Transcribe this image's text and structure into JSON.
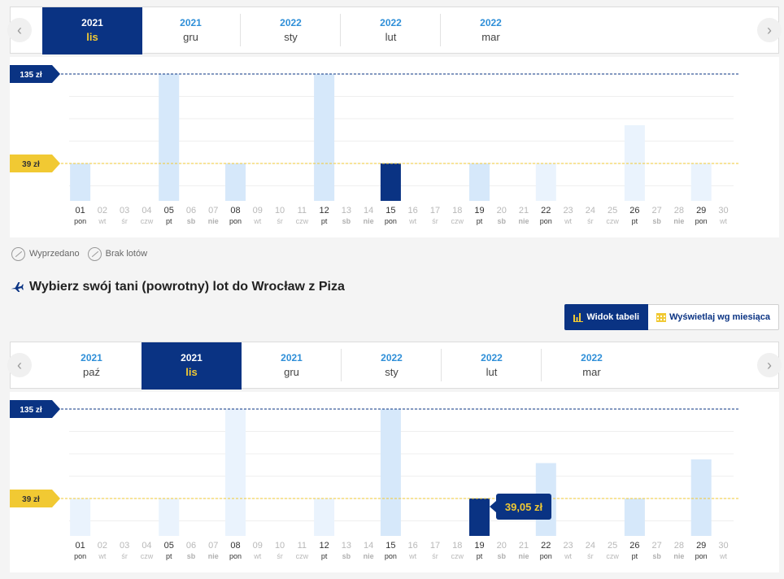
{
  "top": {
    "months": [
      {
        "year": "2021",
        "month": "lis",
        "active": true
      },
      {
        "year": "2021",
        "month": "gru",
        "active": false
      },
      {
        "year": "2022",
        "month": "sty",
        "active": false
      },
      {
        "year": "2022",
        "month": "lut",
        "active": false
      },
      {
        "year": "2022",
        "month": "mar",
        "active": false
      }
    ],
    "nav_prev": "‹",
    "nav_next": "›"
  },
  "legend": {
    "sold_out": "Wyprzedano",
    "no_flights": "Brak lotów"
  },
  "section_title": "Wybierz swój tani (powrotny) lot do Wrocław z Piza",
  "view_toggle": {
    "table_view": "Widok tabeli",
    "month_view": "Wyświetlaj wg miesiąca"
  },
  "bottom": {
    "months": [
      {
        "year": "2021",
        "month": "paź",
        "active": false
      },
      {
        "year": "2021",
        "month": "lis",
        "active": true
      },
      {
        "year": "2021",
        "month": "gru",
        "active": false
      },
      {
        "year": "2022",
        "month": "sty",
        "active": false
      },
      {
        "year": "2022",
        "month": "lut",
        "active": false
      },
      {
        "year": "2022",
        "month": "mar",
        "active": false
      }
    ],
    "nav_prev": "‹",
    "nav_next": "›"
  },
  "colors": {
    "navy": "#0a3383",
    "yellow": "#f1c933",
    "bar_light": "#d6e8fa",
    "bar_lighter": "#eaf3fd",
    "link_blue": "#2f8fd8",
    "weekend_grey": "#b0b0b0"
  },
  "chart_data": [
    {
      "type": "bar",
      "max_label": "135 zł",
      "min_label": "39 zł",
      "max_value": 135,
      "min_value": 39,
      "categories": [
        "01",
        "02",
        "03",
        "04",
        "05",
        "06",
        "07",
        "08",
        "09",
        "10",
        "11",
        "12",
        "13",
        "14",
        "15",
        "16",
        "17",
        "18",
        "19",
        "20",
        "21",
        "22",
        "23",
        "24",
        "25",
        "26",
        "27",
        "28",
        "29",
        "30"
      ],
      "weekdays": [
        "pon",
        "wt",
        "śr",
        "czw",
        "pt",
        "sb",
        "nie",
        "pon",
        "wt",
        "śr",
        "czw",
        "pt",
        "sb",
        "nie",
        "pon",
        "wt",
        "śr",
        "czw",
        "pt",
        "sb",
        "nie",
        "pon",
        "wt",
        "śr",
        "czw",
        "pt",
        "sb",
        "nie",
        "pon",
        "wt"
      ],
      "values": [
        39,
        null,
        null,
        null,
        135,
        null,
        null,
        39,
        null,
        null,
        null,
        135,
        null,
        null,
        39,
        null,
        null,
        null,
        39,
        null,
        null,
        39,
        null,
        null,
        null,
        80,
        null,
        null,
        39,
        null
      ],
      "shades": [
        "light",
        "",
        "",
        "",
        "light",
        "",
        "",
        "light",
        "",
        "",
        "",
        "light",
        "",
        "",
        "selected",
        "",
        "",
        "",
        "light",
        "",
        "",
        "lighter",
        "",
        "",
        "",
        "lighter",
        "",
        "",
        "lighter",
        ""
      ],
      "selected_day": "15",
      "tooltip": ""
    },
    {
      "type": "bar",
      "max_label": "135 zł",
      "min_label": "39 zł",
      "max_value": 135,
      "min_value": 39,
      "categories": [
        "01",
        "02",
        "03",
        "04",
        "05",
        "06",
        "07",
        "08",
        "09",
        "10",
        "11",
        "12",
        "13",
        "14",
        "15",
        "16",
        "17",
        "18",
        "19",
        "20",
        "21",
        "22",
        "23",
        "24",
        "25",
        "26",
        "27",
        "28",
        "29",
        "30"
      ],
      "weekdays": [
        "pon",
        "wt",
        "śr",
        "czw",
        "pt",
        "sb",
        "nie",
        "pon",
        "wt",
        "śr",
        "czw",
        "pt",
        "sb",
        "nie",
        "pon",
        "wt",
        "śr",
        "czw",
        "pt",
        "sb",
        "nie",
        "pon",
        "wt",
        "śr",
        "czw",
        "pt",
        "sb",
        "nie",
        "pon",
        "wt"
      ],
      "values": [
        39,
        null,
        null,
        null,
        39,
        null,
        null,
        135,
        null,
        null,
        null,
        39,
        null,
        null,
        135,
        null,
        null,
        null,
        39,
        null,
        null,
        77,
        null,
        null,
        null,
        39,
        null,
        null,
        81,
        null
      ],
      "shades": [
        "lighter",
        "",
        "",
        "",
        "lighter",
        "",
        "",
        "lighter",
        "",
        "",
        "",
        "lighter",
        "",
        "",
        "light",
        "",
        "",
        "",
        "selected",
        "",
        "",
        "light",
        "",
        "",
        "",
        "light",
        "",
        "",
        "light",
        ""
      ],
      "selected_day": "19",
      "tooltip": "39,05 zł"
    }
  ]
}
